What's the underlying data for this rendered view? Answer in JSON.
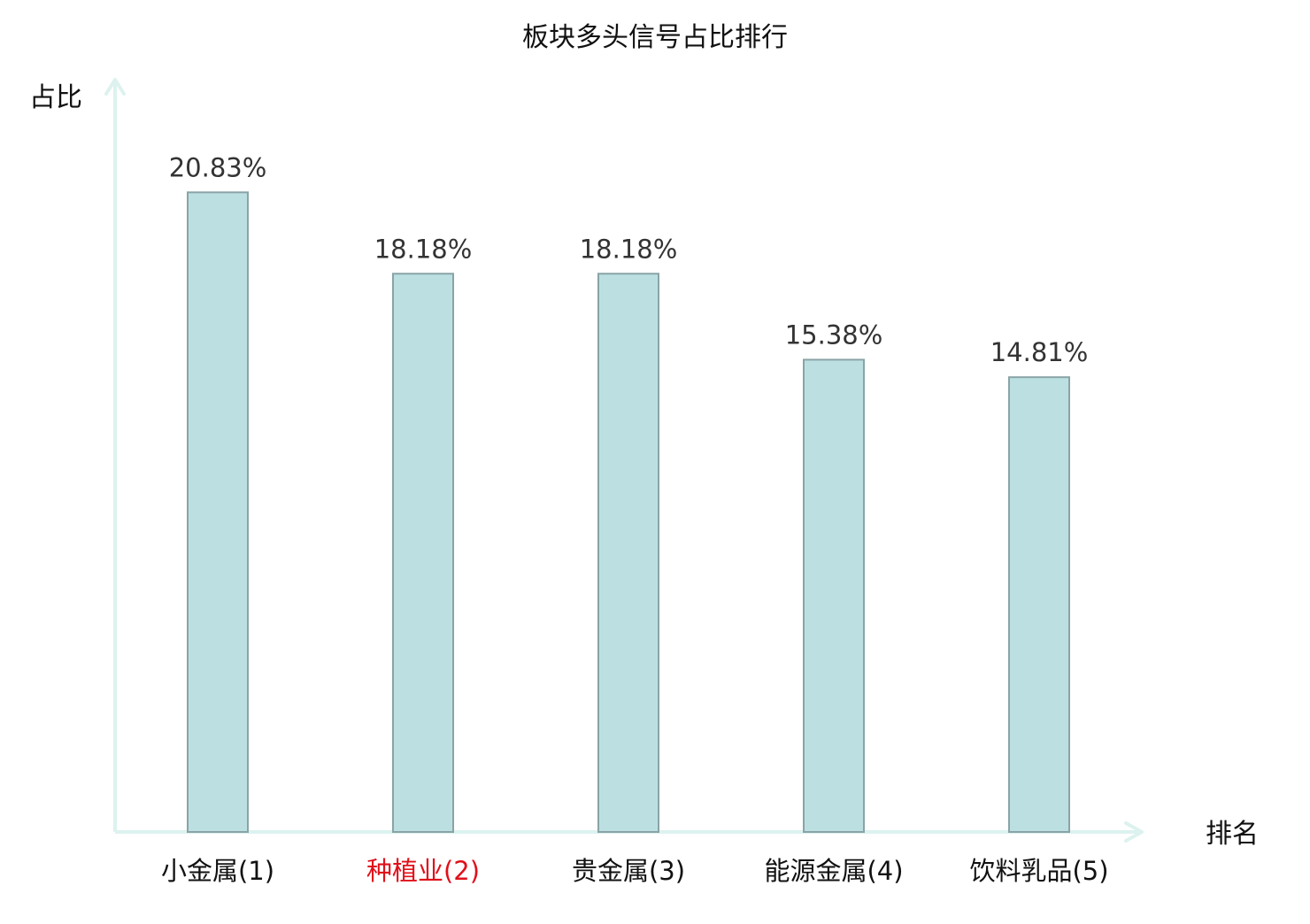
{
  "chart_data": {
    "type": "bar",
    "title": "板块多头信号占比排行",
    "xlabel": "排名",
    "ylabel": "占比",
    "categories": [
      "小金属(1)",
      "种植业(2)",
      "贵金属(3)",
      "能源金属(4)",
      "饮料乳品(5)"
    ],
    "values": [
      20.83,
      18.18,
      18.18,
      15.38,
      14.81
    ],
    "value_labels": [
      "20.83%",
      "18.18%",
      "18.18%",
      "15.38%",
      "14.81%"
    ],
    "highlight_index": 1,
    "ylim": [
      0,
      24.5
    ],
    "grid": false,
    "colors": {
      "bar_fill": "#bce0e2",
      "bar_stroke": "#8aa3a6",
      "axis": "#ddf2ef",
      "label_text": "#333333",
      "category_text": "#111111",
      "highlight_text": "#e0101a",
      "title_text": "#111111"
    }
  }
}
